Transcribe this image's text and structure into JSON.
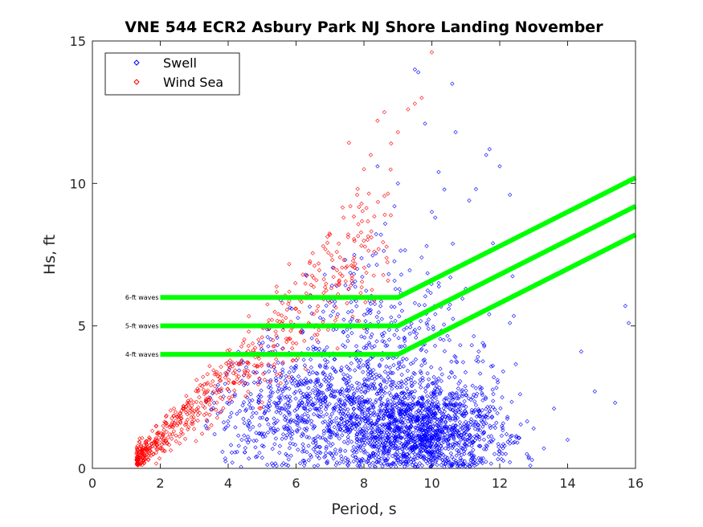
{
  "chart_data": {
    "type": "scatter",
    "title": "VNE 544 ECR2 Asbury Park NJ Shore Landing November",
    "xlabel": "Period, s",
    "ylabel": "Hs, ft",
    "xlim": [
      0,
      16
    ],
    "ylim": [
      0,
      15
    ],
    "xticks": [
      0,
      2,
      4,
      6,
      8,
      10,
      12,
      14,
      16
    ],
    "yticks": [
      0,
      5,
      10,
      15
    ],
    "grid": false,
    "legend_position": "top-left",
    "series": [
      {
        "name": "Swell",
        "color": "#0000ff",
        "marker": "diamond",
        "summary": "dense cloud, ~3-13 s, mostly 0-4 ft",
        "points": [
          [
            3.6,
            1.2
          ],
          [
            3.8,
            2.0
          ],
          [
            4.0,
            1.5
          ],
          [
            4.2,
            2.6
          ],
          [
            4.4,
            1.0
          ],
          [
            4.5,
            3.0
          ],
          [
            4.7,
            1.8
          ],
          [
            4.9,
            2.3
          ],
          [
            5.0,
            0.8
          ],
          [
            5.2,
            3.4
          ],
          [
            5.4,
            1.6
          ],
          [
            5.5,
            2.8
          ],
          [
            5.6,
            4.2
          ],
          [
            5.7,
            0.5
          ],
          [
            5.8,
            2.2
          ],
          [
            6.0,
            3.6
          ],
          [
            6.1,
            1.4
          ],
          [
            6.2,
            4.8
          ],
          [
            6.3,
            2.5
          ],
          [
            6.5,
            0.9
          ],
          [
            6.6,
            3.1
          ],
          [
            6.8,
            5.5
          ],
          [
            6.9,
            1.9
          ],
          [
            7.0,
            4.0
          ],
          [
            7.1,
            2.7
          ],
          [
            7.2,
            6.4
          ],
          [
            7.3,
            0.6
          ],
          [
            7.4,
            3.3
          ],
          [
            7.5,
            1.5
          ],
          [
            7.6,
            5.0
          ],
          [
            7.7,
            2.1
          ],
          [
            7.8,
            7.0
          ],
          [
            7.9,
            3.8
          ],
          [
            8.0,
            1.0
          ],
          [
            8.1,
            2.9
          ],
          [
            8.2,
            4.6
          ],
          [
            8.3,
            6.0
          ],
          [
            8.4,
            1.7
          ],
          [
            8.5,
            8.2
          ],
          [
            8.5,
            3.2
          ],
          [
            8.6,
            0.7
          ],
          [
            8.7,
            2.4
          ],
          [
            8.8,
            5.3
          ],
          [
            8.9,
            9.2
          ],
          [
            8.9,
            1.3
          ],
          [
            9.0,
            3.5
          ],
          [
            9.0,
            0.4
          ],
          [
            9.1,
            2.0
          ],
          [
            9.1,
            6.8
          ],
          [
            9.2,
            1.1
          ],
          [
            9.2,
            4.3
          ],
          [
            9.3,
            2.6
          ],
          [
            9.3,
            0.9
          ],
          [
            9.4,
            1.6
          ],
          [
            9.4,
            3.0
          ],
          [
            9.5,
            0.5
          ],
          [
            9.5,
            5.8
          ],
          [
            9.6,
            1.8
          ],
          [
            9.6,
            2.3
          ],
          [
            9.7,
            7.4
          ],
          [
            9.7,
            1.2
          ],
          [
            9.8,
            3.7
          ],
          [
            9.8,
            0.8
          ],
          [
            9.9,
            2.1
          ],
          [
            9.9,
            4.9
          ],
          [
            10.0,
            1.4
          ],
          [
            10.0,
            0.6
          ],
          [
            10.1,
            2.8
          ],
          [
            10.1,
            8.8
          ],
          [
            10.2,
            1.0
          ],
          [
            10.3,
            3.3
          ],
          [
            10.3,
            1.9
          ],
          [
            10.4,
            0.7
          ],
          [
            10.5,
            2.4
          ],
          [
            10.5,
            5.6
          ],
          [
            10.6,
            1.3
          ],
          [
            10.7,
            3.9
          ],
          [
            10.8,
            0.9
          ],
          [
            10.9,
            2.2
          ],
          [
            11.0,
            6.3
          ],
          [
            11.0,
            1.5
          ],
          [
            11.1,
            0.5
          ],
          [
            11.2,
            2.9
          ],
          [
            11.3,
            9.8
          ],
          [
            11.4,
            1.1
          ],
          [
            11.5,
            4.4
          ],
          [
            11.6,
            0.8
          ],
          [
            11.7,
            2.0
          ],
          [
            11.8,
            7.9
          ],
          [
            11.9,
            1.6
          ],
          [
            12.0,
            0.6
          ],
          [
            12.1,
            3.4
          ],
          [
            12.2,
            1.2
          ],
          [
            12.3,
            5.1
          ],
          [
            12.4,
            0.9
          ],
          [
            12.6,
            2.6
          ],
          [
            12.8,
            0.5
          ],
          [
            13.0,
            1.4
          ],
          [
            13.3,
            0.7
          ],
          [
            13.6,
            2.1
          ],
          [
            14.0,
            1.0
          ],
          [
            14.4,
            4.1
          ],
          [
            14.8,
            2.7
          ],
          [
            15.4,
            2.3
          ],
          [
            15.7,
            5.7
          ],
          [
            15.8,
            5.1
          ],
          [
            9.6,
            13.9
          ],
          [
            9.5,
            14.0
          ],
          [
            10.6,
            13.5
          ],
          [
            9.8,
            12.1
          ],
          [
            11.6,
            11.0
          ],
          [
            11.7,
            11.2
          ],
          [
            10.7,
            11.8
          ],
          [
            10.2,
            10.4
          ],
          [
            11.1,
            9.4
          ],
          [
            12.0,
            10.6
          ],
          [
            12.3,
            9.6
          ],
          [
            8.4,
            10.6
          ],
          [
            9.0,
            10.0
          ],
          [
            10.0,
            9.0
          ]
        ]
      },
      {
        "name": "Wind Sea",
        "color": "#ff0000",
        "marker": "diamond",
        "summary": "narrow band rising from ~1.3 s / 0.3 ft to ~10 s / 14.6 ft",
        "points": [
          [
            1.3,
            0.3
          ],
          [
            1.4,
            0.4
          ],
          [
            1.5,
            0.3
          ],
          [
            1.6,
            0.5
          ],
          [
            1.7,
            0.6
          ],
          [
            1.8,
            0.5
          ],
          [
            1.9,
            0.8
          ],
          [
            2.0,
            1.0
          ],
          [
            2.0,
            0.7
          ],
          [
            2.1,
            1.2
          ],
          [
            2.2,
            0.9
          ],
          [
            2.3,
            1.5
          ],
          [
            2.4,
            1.3
          ],
          [
            2.5,
            1.8
          ],
          [
            2.6,
            1.6
          ],
          [
            2.7,
            2.1
          ],
          [
            2.8,
            1.9
          ],
          [
            2.9,
            2.4
          ],
          [
            3.0,
            2.0
          ],
          [
            3.1,
            2.8
          ],
          [
            3.2,
            2.3
          ],
          [
            3.3,
            2.6
          ],
          [
            3.4,
            3.0
          ],
          [
            3.5,
            2.4
          ],
          [
            3.6,
            3.3
          ],
          [
            3.8,
            2.8
          ],
          [
            4.0,
            3.4
          ],
          [
            4.2,
            3.0
          ],
          [
            4.4,
            3.8
          ],
          [
            4.6,
            4.3
          ],
          [
            4.8,
            3.9
          ],
          [
            5.0,
            4.6
          ],
          [
            5.2,
            5.2
          ],
          [
            5.4,
            4.8
          ],
          [
            5.6,
            5.8
          ],
          [
            5.8,
            6.2
          ],
          [
            6.0,
            5.6
          ],
          [
            6.2,
            6.8
          ],
          [
            6.4,
            7.2
          ],
          [
            6.6,
            6.6
          ],
          [
            6.8,
            7.8
          ],
          [
            7.0,
            8.2
          ],
          [
            7.2,
            7.6
          ],
          [
            7.4,
            8.8
          ],
          [
            7.6,
            9.2
          ],
          [
            7.8,
            9.6
          ],
          [
            8.0,
            10.5
          ],
          [
            8.2,
            11.0
          ],
          [
            8.4,
            12.2
          ],
          [
            8.6,
            12.5
          ],
          [
            8.8,
            11.4
          ],
          [
            9.3,
            12.6
          ],
          [
            9.5,
            12.8
          ],
          [
            10.0,
            14.6
          ],
          [
            9.7,
            13.0
          ],
          [
            9.0,
            11.8
          ]
        ]
      }
    ],
    "threshold_lines": [
      {
        "label": "4-ft waves",
        "color": "#00ff00",
        "points": [
          [
            2,
            4
          ],
          [
            9,
            4
          ],
          [
            16,
            8.2
          ]
        ]
      },
      {
        "label": "5-ft waves",
        "color": "#00ff00",
        "points": [
          [
            2,
            5
          ],
          [
            9,
            5
          ],
          [
            16,
            9.2
          ]
        ]
      },
      {
        "label": "6-ft waves",
        "color": "#00ff00",
        "points": [
          [
            2,
            6
          ],
          [
            9,
            6
          ],
          [
            16,
            10.2
          ]
        ]
      }
    ]
  }
}
